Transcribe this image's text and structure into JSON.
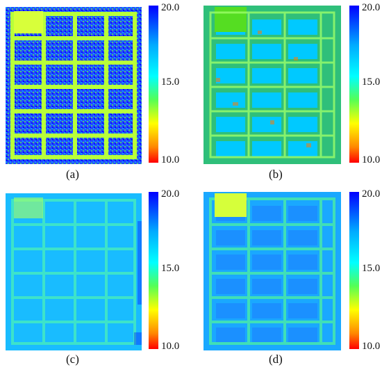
{
  "figure": {
    "panels": [
      {
        "label": "(a)",
        "image_name": "plot-image-a",
        "colorbar": {
          "ticks": [
            "20.0",
            "15.0",
            "10.0"
          ]
        }
      },
      {
        "label": "(b)",
        "image_name": "plot-image-b",
        "colorbar": {
          "ticks": [
            "20.0",
            "15.0",
            "10.0"
          ]
        }
      },
      {
        "label": "(c)",
        "image_name": "plot-image-c",
        "colorbar": {
          "ticks": [
            "20.0",
            "15.0",
            "10.0"
          ]
        }
      },
      {
        "label": "(d)",
        "image_name": "plot-image-d",
        "colorbar": {
          "ticks": [
            "20.0",
            "15.0",
            "10.0"
          ]
        }
      }
    ],
    "colormap": [
      "#0000ff",
      "#00aaff",
      "#00ffff",
      "#55ff55",
      "#ffff00",
      "#ff8800",
      "#ff0000"
    ]
  }
}
